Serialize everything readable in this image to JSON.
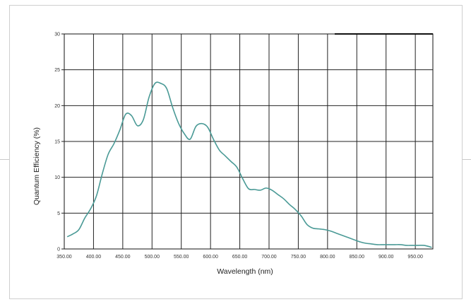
{
  "chart_data": {
    "type": "line",
    "title": "",
    "xlabel": "Wavelength (nm)",
    "ylabel": "Quantum Efficiency (%)",
    "xlim": [
      350,
      980
    ],
    "ylim": [
      0,
      30
    ],
    "x_ticks": [
      "350.00",
      "400.00",
      "450.00",
      "500.00",
      "550.00",
      "600.00",
      "650.00",
      "700.00",
      "750.00",
      "800.00",
      "850.00",
      "900.00",
      "950.00"
    ],
    "y_ticks": [
      "0",
      "5",
      "10",
      "15",
      "20",
      "25",
      "30"
    ],
    "grid": true,
    "series": [
      {
        "color": "#4a9a96",
        "x": [
          355,
          365,
          375,
          385,
          395,
          405,
          415,
          425,
          435,
          445,
          455,
          465,
          475,
          485,
          495,
          505,
          515,
          525,
          535,
          545,
          555,
          565,
          575,
          585,
          595,
          605,
          615,
          625,
          635,
          645,
          655,
          665,
          675,
          685,
          695,
          705,
          715,
          725,
          735,
          745,
          755,
          765,
          775,
          785,
          795,
          805,
          815,
          825,
          835,
          845,
          855,
          865,
          875,
          885,
          895,
          905,
          915,
          925,
          935,
          945,
          955,
          965,
          975,
          978
        ],
        "y": [
          1.7,
          2.1,
          2.7,
          4.3,
          5.6,
          7.4,
          10.5,
          13.2,
          14.7,
          16.6,
          18.8,
          18.6,
          17.2,
          18.0,
          21.2,
          23.1,
          23.1,
          22.4,
          19.8,
          17.6,
          16.1,
          15.3,
          17.1,
          17.5,
          17.0,
          15.3,
          13.8,
          13.0,
          12.2,
          11.4,
          9.8,
          8.4,
          8.3,
          8.2,
          8.5,
          8.2,
          7.6,
          7.0,
          6.2,
          5.5,
          4.6,
          3.4,
          2.9,
          2.8,
          2.7,
          2.5,
          2.2,
          1.9,
          1.6,
          1.3,
          1.0,
          0.8,
          0.7,
          0.6,
          0.6,
          0.6,
          0.6,
          0.6,
          0.5,
          0.5,
          0.5,
          0.5,
          0.3,
          0.2
        ]
      }
    ]
  }
}
